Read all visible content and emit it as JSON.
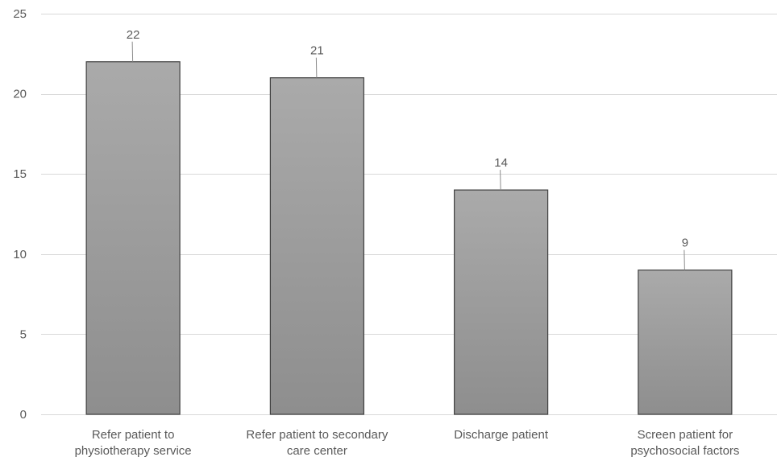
{
  "chart_data": {
    "type": "bar",
    "categories": [
      [
        "Refer patient to",
        "physiotherapy service"
      ],
      [
        "Refer patient to secondary",
        "care center"
      ],
      [
        "Discharge patient"
      ],
      [
        "Screen patient for",
        "psychosocial factors"
      ]
    ],
    "values": [
      22,
      21,
      14,
      9
    ],
    "data_labels": [
      "22",
      "21",
      "14",
      "9"
    ],
    "ylim": [
      0,
      25
    ],
    "yticks": [
      0,
      5,
      10,
      15,
      20,
      25
    ],
    "title": "",
    "xlabel": "",
    "ylabel": "",
    "grid": true,
    "legend": "none",
    "colors": {
      "bar_top": "#aaaaaa",
      "bar_bottom": "#8e8e8e",
      "bar_border": "#404040",
      "grid": "#d9d9d9",
      "text": "#595959"
    }
  }
}
